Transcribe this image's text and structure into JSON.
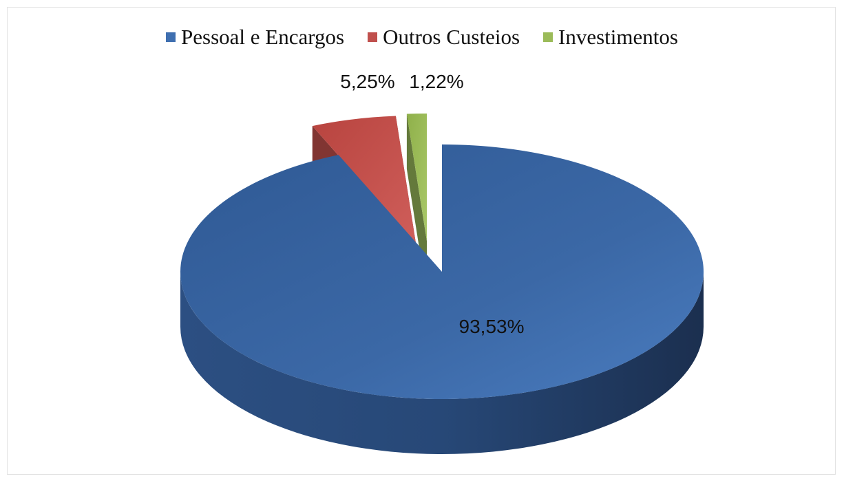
{
  "chart_data": {
    "type": "pie",
    "style": "3d-exploded",
    "legend_position": "top",
    "categories": [
      "Pessoal e Encargos",
      "Outros Custeios",
      "Investimentos"
    ],
    "values": [
      93.53,
      5.25,
      1.22
    ],
    "data_labels": [
      "93,53%",
      "5,25%",
      "1,22%"
    ],
    "colors": {
      "Pessoal e Encargos": "#3f6fb0",
      "Outros Custeios": "#c0504d",
      "Investimentos": "#9bbb59"
    }
  }
}
